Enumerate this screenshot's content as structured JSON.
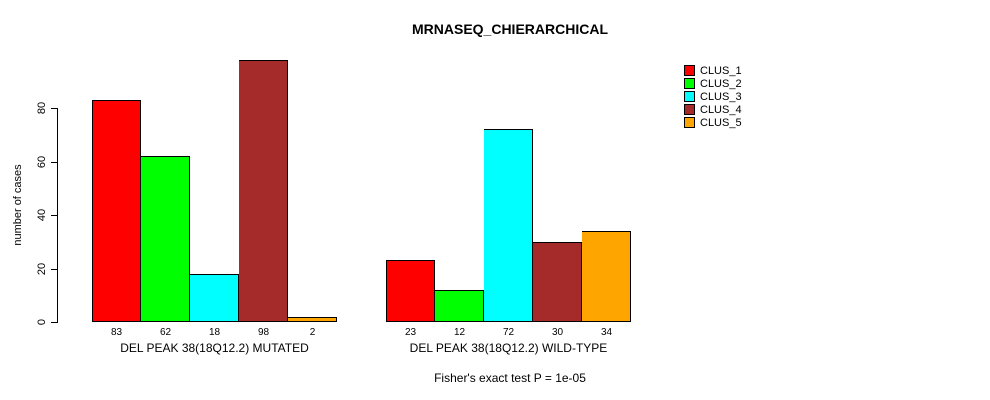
{
  "chart_data": {
    "type": "bar",
    "title": "MRNASEQ_CHIERARCHICAL",
    "ylabel": "number of cases",
    "footnote": "Fisher's exact test P = 1e-05",
    "ylim": [
      0,
      80
    ],
    "yticks": [
      0,
      20,
      40,
      60,
      80
    ],
    "grid": false,
    "legend_position": "right",
    "bar_outline_color": "#000000",
    "series": [
      {
        "name": "CLUS_1",
        "color": "#FF0000"
      },
      {
        "name": "CLUS_2",
        "color": "#00FF00"
      },
      {
        "name": "CLUS_3",
        "color": "#00FFFF"
      },
      {
        "name": "CLUS_4",
        "color": "#A52A2A"
      },
      {
        "name": "CLUS_5",
        "color": "#FFA500"
      }
    ],
    "groups": [
      {
        "label": "DEL PEAK 38(18Q12.2) MUTATED",
        "values": [
          83,
          62,
          18,
          98,
          2
        ]
      },
      {
        "label": "DEL PEAK 38(18Q12.2) WILD-TYPE",
        "values": [
          23,
          12,
          72,
          30,
          34
        ]
      }
    ]
  }
}
